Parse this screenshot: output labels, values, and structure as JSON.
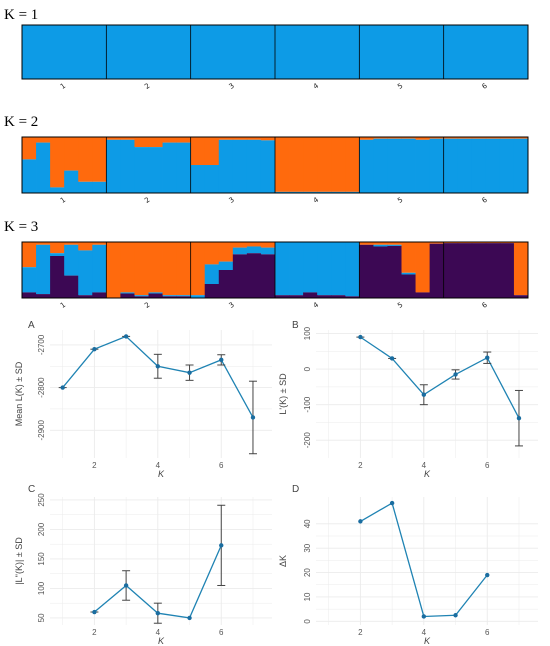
{
  "colors": {
    "blue": "#0d9be6",
    "orange": "#ff6a0d",
    "purple": "#3c0854",
    "line": "#1f83b3",
    "point": "#1a6da0",
    "err": "#444444",
    "grid": "#ebebeb"
  },
  "structure": {
    "pop_labels": [
      "1",
      "2",
      "3",
      "4",
      "5",
      "6"
    ],
    "panels": [
      {
        "title": "K = 1",
        "pops": [
          [
            [
              [
                1,
                "blue"
              ]
            ]
          ],
          [
            [
              [
                1,
                "blue"
              ]
            ]
          ],
          [
            [
              [
                1,
                "blue"
              ]
            ]
          ],
          [
            [
              [
                1,
                "blue"
              ]
            ]
          ],
          [
            [
              [
                1,
                "blue"
              ]
            ]
          ],
          [
            [
              [
                1,
                "blue"
              ]
            ]
          ]
        ]
      },
      {
        "title": "K = 2",
        "pops": [
          [
            [
              [
                0.4,
                "orange"
              ],
              [
                0.6,
                "blue"
              ]
            ]
          ],
          [
            [
              [
                0.1,
                "orange"
              ],
              [
                0.9,
                "blue"
              ]
            ]
          ],
          [
            [
              [
                0.9,
                "orange"
              ],
              [
                0.1,
                "blue"
              ]
            ]
          ],
          [
            [
              [
                0.6,
                "orange"
              ],
              [
                0.4,
                "blue"
              ]
            ]
          ],
          [
            [
              [
                0.8,
                "orange"
              ],
              [
                0.2,
                "blue"
              ]
            ]
          ],
          [
            [
              [
                0.8,
                "orange"
              ],
              [
                0.2,
                "blue"
              ]
            ]
          ]
        ],
        "detail": [
          [
            [
              0.4,
              0.6
            ],
            [
              0.1,
              0.9
            ],
            [
              0.9,
              0.1
            ],
            [
              0.6,
              0.4
            ],
            [
              0.8,
              0.2
            ],
            [
              0.8,
              0.2
            ]
          ],
          [
            [
              0.05,
              0.95
            ],
            [
              0.05,
              0.95
            ],
            [
              0.18,
              0.82
            ],
            [
              0.18,
              0.82
            ],
            [
              0.1,
              0.9
            ],
            [
              0.1,
              0.9
            ]
          ],
          [
            [
              0.5,
              0.5
            ],
            [
              0.5,
              0.5
            ],
            [
              0.05,
              0.95
            ],
            [
              0.05,
              0.95
            ],
            [
              0.05,
              0.95
            ],
            [
              0.06,
              0.94
            ]
          ],
          [
            [
              0.98,
              0.02
            ],
            [
              0.98,
              0.02
            ],
            [
              0.98,
              0.02
            ],
            [
              0.98,
              0.02
            ],
            [
              0.98,
              0.02
            ],
            [
              0.98,
              0.02
            ]
          ],
          [
            [
              0.05,
              0.95
            ],
            [
              0.03,
              0.97
            ],
            [
              0.03,
              0.97
            ],
            [
              0.03,
              0.97
            ],
            [
              0.05,
              0.95
            ],
            [
              0.03,
              0.97
            ]
          ],
          [
            [
              0.03,
              0.97
            ],
            [
              0.03,
              0.97
            ],
            [
              0.03,
              0.97
            ],
            [
              0.03,
              0.97
            ],
            [
              0.03,
              0.97
            ],
            [
              0.03,
              0.97
            ]
          ]
        ]
      },
      {
        "title": "K = 3",
        "detail": [
          [
            [
              0.45,
              0.45,
              0.1
            ],
            [
              0.05,
              0.88,
              0.07
            ],
            [
              0.2,
              0.05,
              0.75
            ],
            [
              0.05,
              0.55,
              0.4
            ],
            [
              0.15,
              0.8,
              0.05
            ],
            [
              0.05,
              0.85,
              0.1
            ]
          ],
          [
            [
              1.0,
              0,
              0
            ],
            [
              0.9,
              0.02,
              0.08
            ],
            [
              0.95,
              0.02,
              0.03
            ],
            [
              0.9,
              0.02,
              0.08
            ],
            [
              0.95,
              0.02,
              0.03
            ],
            [
              0.95,
              0.02,
              0.03
            ]
          ],
          [
            [
              0.95,
              0.05,
              0
            ],
            [
              0.4,
              0.35,
              0.25
            ],
            [
              0.35,
              0.15,
              0.5
            ],
            [
              0.1,
              0.12,
              0.78
            ],
            [
              0.08,
              0.12,
              0.8
            ],
            [
              0.1,
              0.12,
              0.78
            ]
          ],
          [
            [
              0,
              0.95,
              0.05
            ],
            [
              0,
              0.95,
              0.05
            ],
            [
              0,
              0.9,
              0.1
            ],
            [
              0,
              0.95,
              0.05
            ],
            [
              0,
              0.95,
              0.05
            ],
            [
              0,
              0.97,
              0.03
            ]
          ],
          [
            [
              0.05,
              0,
              0.95
            ],
            [
              0.05,
              0.03,
              0.92
            ],
            [
              0.05,
              0.02,
              0.93
            ],
            [
              0.55,
              0.03,
              0.42
            ],
            [
              0.9,
              0,
              0.1
            ],
            [
              0.03,
              0,
              0.97
            ]
          ],
          [
            [
              0.02,
              0,
              0.98
            ],
            [
              0.02,
              0,
              0.98
            ],
            [
              0.02,
              0,
              0.98
            ],
            [
              0.02,
              0,
              0.98
            ],
            [
              0.02,
              0,
              0.98
            ],
            [
              0.95,
              0,
              0.05
            ]
          ]
        ]
      }
    ]
  },
  "chart_data": [
    {
      "type": "line",
      "label": "A",
      "ylabel": "Mean L(K) ± SD",
      "xlabel": "K",
      "x": [
        1,
        2,
        3,
        4,
        5,
        6,
        7
      ],
      "values": [
        -2800,
        -2710,
        -2680,
        -2750,
        -2765,
        -2735,
        -2870
      ],
      "sd": [
        0,
        0,
        0,
        28,
        18,
        12,
        85
      ],
      "ylim": [
        -2965,
        -2665
      ],
      "yticks": [
        -2900,
        -2800,
        -2700
      ],
      "xlim": [
        0.6,
        7.6
      ],
      "xticks": [
        2,
        4,
        6
      ]
    },
    {
      "type": "line",
      "label": "B",
      "ylabel": "L'(K) ± SD",
      "xlabel": "K",
      "x": [
        2,
        3,
        4,
        5,
        6,
        7
      ],
      "values": [
        90,
        30,
        -72,
        -15,
        32,
        -138
      ],
      "sd": [
        0,
        0,
        28,
        13,
        16,
        78
      ],
      "ylim": [
        -250,
        110
      ],
      "yticks": [
        -200,
        -100,
        0,
        100
      ],
      "xlim": [
        0.6,
        7.6
      ],
      "xticks": [
        2,
        4,
        6
      ]
    },
    {
      "type": "line",
      "label": "C",
      "ylabel": "|L''(K)| ± SD",
      "xlabel": "K",
      "x": [
        2,
        3,
        4,
        5,
        6
      ],
      "values": [
        60,
        105,
        58,
        50,
        173
      ],
      "sd": [
        0,
        25,
        17,
        0,
        68
      ],
      "ylim": [
        38,
        255
      ],
      "yticks": [
        50,
        100,
        150,
        200,
        250
      ],
      "xlim": [
        0.6,
        7.6
      ],
      "xticks": [
        2,
        4,
        6
      ]
    },
    {
      "type": "line",
      "label": "D",
      "ylabel": "ΔK",
      "xlabel": "K",
      "x": [
        2,
        3,
        4,
        5,
        6
      ],
      "values": [
        41,
        48.5,
        2,
        2.5,
        19
      ],
      "sd": [
        0,
        0,
        0,
        0,
        0
      ],
      "ylim": [
        -1.5,
        51
      ],
      "yticks": [
        0,
        10,
        20,
        30,
        40
      ],
      "xlim": [
        0.6,
        7.6
      ],
      "xticks": [
        2,
        4,
        6
      ]
    }
  ]
}
